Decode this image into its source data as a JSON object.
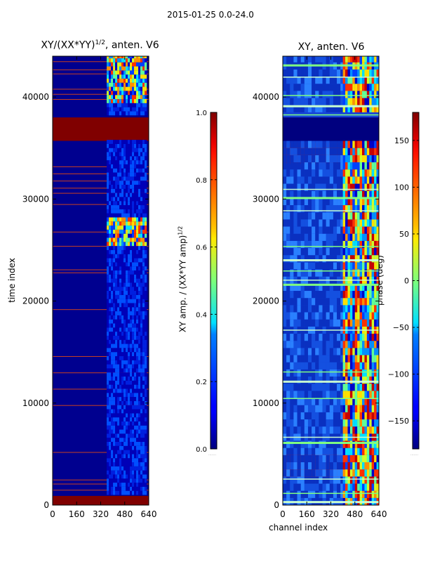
{
  "suptitle": "2015-01-25 0.0-24.0",
  "chart_data": [
    {
      "type": "heatmap",
      "title_main": "XY/(XX*YY)",
      "title_sup": "1/2",
      "title_suffix": ", anten. V6",
      "xlabel": "",
      "ylabel": "time index",
      "xlim": [
        0,
        640
      ],
      "ylim": [
        0,
        44000
      ],
      "xticks": [
        0,
        160,
        320,
        480,
        640
      ],
      "xtick_labels": [
        "0",
        "160",
        "320",
        "480",
        "640"
      ],
      "yticks": [
        0,
        10000,
        20000,
        30000,
        40000
      ],
      "ytick_labels": [
        "0",
        "10000",
        "20000",
        "30000",
        "40000"
      ],
      "colormap": "jet",
      "colorbar": {
        "label_main": "XY amp. / (XX*YY amp)",
        "label_sup": "1/2",
        "vmin": 0.0,
        "vmax": 1.0,
        "ticks": [
          0.0,
          0.2,
          0.4,
          0.6,
          0.8,
          1.0
        ],
        "tick_labels": [
          "0.0",
          "0.2",
          "0.4",
          "0.6",
          "0.8",
          "1.0"
        ]
      }
    },
    {
      "type": "heatmap",
      "title_main": "XY, anten. V6",
      "xlabel": "channel index",
      "ylabel": "",
      "xlim": [
        0,
        640
      ],
      "ylim": [
        0,
        44000
      ],
      "xticks": [
        0,
        160,
        320,
        480,
        640
      ],
      "xtick_labels": [
        "0",
        "160",
        "320",
        "480",
        "640"
      ],
      "yticks": [
        0,
        10000,
        20000,
        30000,
        40000
      ],
      "ytick_labels": [
        "0",
        "10000",
        "20000",
        "30000",
        "40000"
      ],
      "colormap": "jet",
      "colorbar": {
        "label": "phase (deg)",
        "vmin": -180,
        "vmax": 180,
        "ticks": [
          -150,
          -100,
          -50,
          0,
          50,
          100,
          150
        ],
        "tick_labels": [
          "−150",
          "−100",
          "−50",
          "0",
          "50",
          "100",
          "150"
        ]
      }
    }
  ]
}
